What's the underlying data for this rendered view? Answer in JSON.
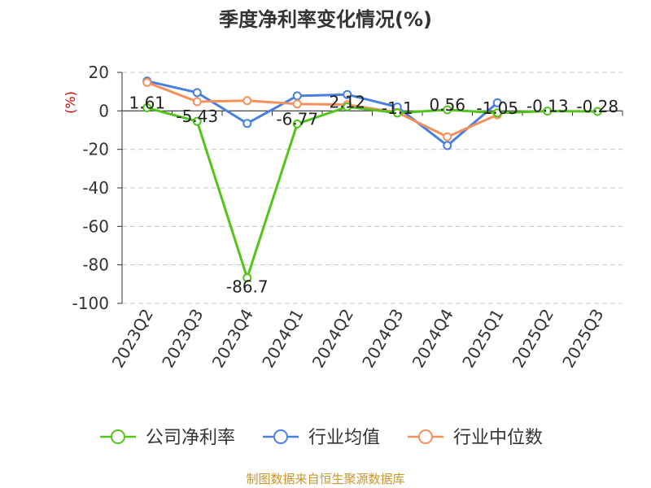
{
  "chart_data": {
    "type": "line",
    "title": "季度净利率变化情况(%)",
    "ylabel": "(%)",
    "ylim": [
      -100,
      20
    ],
    "yticks": [
      20,
      0,
      -20,
      -40,
      -60,
      -80,
      -100
    ],
    "categories": [
      "2023Q2",
      "2023Q3",
      "2023Q4",
      "2024Q1",
      "2024Q2",
      "2024Q3",
      "2024Q4",
      "2025Q1",
      "2025Q2",
      "2025Q3"
    ],
    "grid": true,
    "legend_position": "bottom",
    "series": [
      {
        "name": "公司净利率",
        "color": "#52c41a",
        "values": [
          1.61,
          -5.43,
          -86.7,
          -6.77,
          2.12,
          -1.1,
          0.56,
          -1.05,
          -0.13,
          -0.28
        ],
        "labels": [
          "1.61",
          "-5.43",
          "-86.7",
          "-6.77",
          "2.12",
          "-1.1",
          "0.56",
          "-1.05",
          "-0.13",
          "-0.28"
        ]
      },
      {
        "name": "行业均值",
        "color": "#4a7fe0",
        "values": [
          15.5,
          9.5,
          -6.5,
          7.8,
          8.5,
          2.0,
          -18.0,
          4.2,
          null,
          null
        ]
      },
      {
        "name": "行业中位数",
        "color": "#f4905a",
        "values": [
          14.8,
          4.8,
          5.3,
          3.6,
          3.2,
          -0.8,
          -13.5,
          -2.0,
          null,
          null
        ]
      }
    ]
  },
  "source": "制图数据来自恒生聚源数据库"
}
